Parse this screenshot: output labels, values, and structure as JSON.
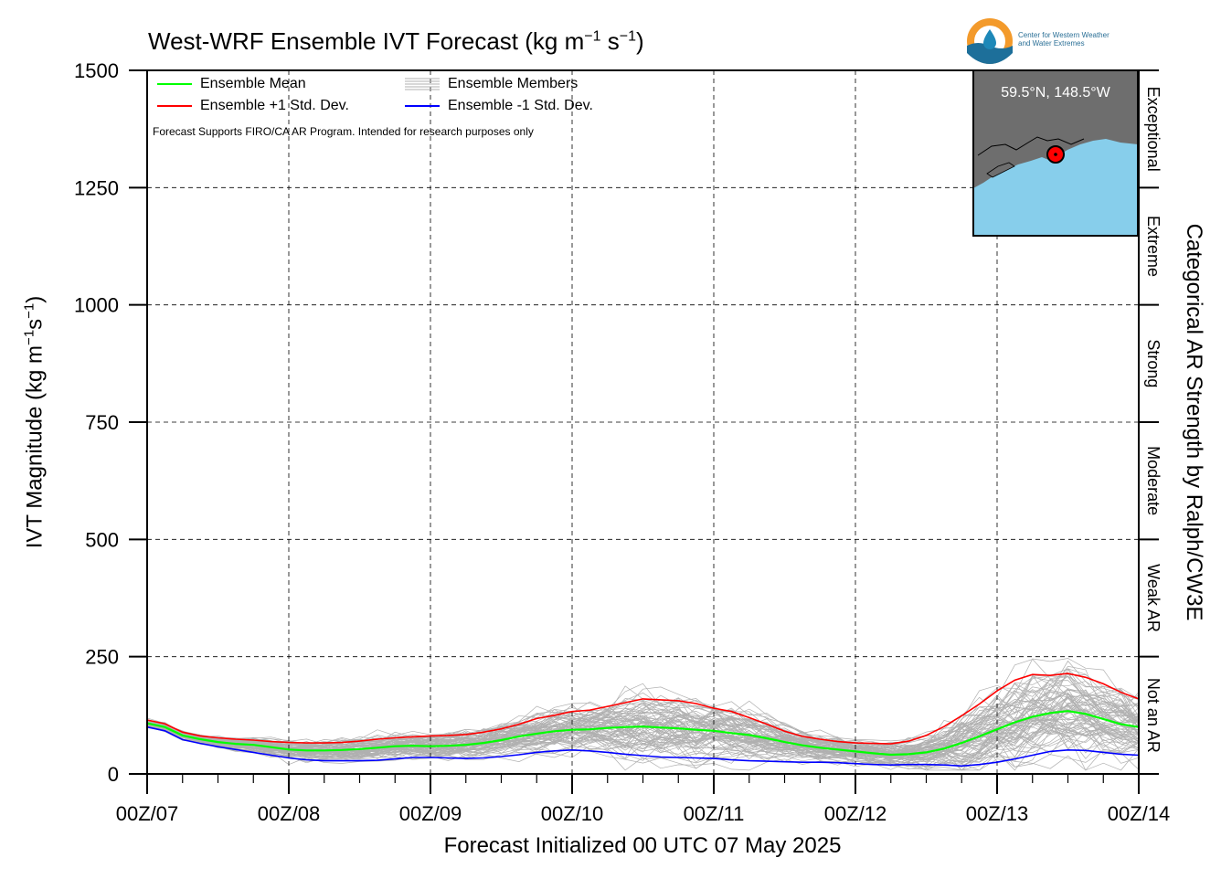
{
  "title": {
    "main": "West-WRF Ensemble IVT Forecast (kg m",
    "sup1": "−1",
    "mid": " s",
    "sup2": "−1",
    "end": ")"
  },
  "ylabel": {
    "a": "IVT Magnitude (kg m",
    "sup1": "−1",
    "b": "s",
    "sup2": "−1",
    "c": ")"
  },
  "xlabel": "Forecast Initialized 00 UTC 07 May 2025",
  "right_axis_label": "Categorical AR Strength by Ralph/CW3E",
  "note": "Forecast Supports FIRO/CA AR Program. Intended for research purposes only",
  "logo": {
    "line1": "Center for Western Weather",
    "line2": "and Water Extremes"
  },
  "inset": {
    "location": "59.5°N, 148.5°W",
    "ocean_color": "#87ceeb",
    "land_color": "#6e6e6e",
    "marker_color": "#ff0000"
  },
  "colors": {
    "mean": "#00ff00",
    "plus": "#ff0000",
    "minus": "#0000ff",
    "members": "#b0b0b0"
  },
  "chart_data": {
    "type": "line",
    "title": "West-WRF Ensemble IVT Forecast (kg m−1 s−1)",
    "xlabel": "Forecast Initialized 00 UTC 07 May 2025",
    "ylabel": "IVT Magnitude (kg m−1s−1)",
    "ylim": [
      0,
      1500
    ],
    "yticks": [
      0,
      250,
      500,
      750,
      1000,
      1250,
      1500
    ],
    "xlim": [
      0,
      168
    ],
    "x_unit": "hours after 00Z/07",
    "xtick_labels": [
      "00Z/07",
      "00Z/08",
      "00Z/09",
      "00Z/10",
      "00Z/11",
      "00Z/12",
      "00Z/13",
      "00Z/14"
    ],
    "grid": true,
    "legend_position": "top-left",
    "categories_right": [
      {
        "label": "Not an AR",
        "range": [
          0,
          250
        ]
      },
      {
        "label": "Weak AR",
        "range": [
          250,
          500
        ]
      },
      {
        "label": "Moderate",
        "range": [
          500,
          750
        ]
      },
      {
        "label": "Strong",
        "range": [
          750,
          1000
        ]
      },
      {
        "label": "Extreme",
        "range": [
          1000,
          1250
        ]
      },
      {
        "label": "Exceptional",
        "range": [
          1250,
          1500
        ]
      }
    ],
    "x": [
      0,
      3,
      6,
      9,
      12,
      15,
      18,
      21,
      24,
      27,
      30,
      33,
      36,
      39,
      42,
      45,
      48,
      51,
      54,
      57,
      60,
      63,
      66,
      69,
      72,
      75,
      78,
      81,
      84,
      87,
      90,
      93,
      96,
      99,
      102,
      105,
      108,
      111,
      114,
      117,
      120,
      123,
      126,
      129,
      132,
      135,
      138,
      141,
      144,
      147,
      150,
      153,
      156,
      159,
      162,
      165,
      168
    ],
    "series": [
      {
        "name": "Ensemble Mean",
        "color": "#00ff00",
        "values": [
          108,
          100,
          82,
          74,
          68,
          64,
          62,
          57,
          52,
          50,
          50,
          51,
          53,
          56,
          59,
          60,
          59,
          60,
          62,
          66,
          72,
          80,
          86,
          91,
          94,
          95,
          98,
          100,
          101,
          99,
          97,
          94,
          92,
          87,
          83,
          76,
          68,
          61,
          56,
          52,
          48,
          44,
          41,
          42,
          46,
          54,
          66,
          80,
          95,
          110,
          122,
          130,
          134,
          128,
          117,
          106,
          100
        ]
      },
      {
        "name": "Ensemble +1 Std. Dev.",
        "color": "#ff0000",
        "values": [
          115,
          107,
          89,
          81,
          77,
          74,
          72,
          69,
          67,
          66,
          66,
          67,
          70,
          74,
          77,
          79,
          81,
          82,
          84,
          89,
          96,
          106,
          118,
          125,
          133,
          136,
          144,
          152,
          160,
          158,
          156,
          150,
          140,
          133,
          120,
          106,
          91,
          80,
          74,
          69,
          66,
          65,
          64,
          70,
          82,
          101,
          124,
          149,
          177,
          200,
          212,
          210,
          214,
          206,
          192,
          174,
          160
        ]
      },
      {
        "name": "Ensemble -1 Std. Dev.",
        "color": "#0000ff",
        "values": [
          100,
          92,
          73,
          65,
          58,
          52,
          46,
          40,
          34,
          30,
          28,
          28,
          28,
          29,
          32,
          35,
          35,
          34,
          33,
          34,
          37,
          41,
          46,
          49,
          51,
          49,
          46,
          42,
          39,
          36,
          35,
          34,
          33,
          30,
          28,
          27,
          26,
          25,
          25,
          24,
          22,
          20,
          19,
          20,
          20,
          19,
          17,
          20,
          25,
          32,
          40,
          48,
          51,
          50,
          46,
          42,
          40
        ]
      }
    ],
    "members": {
      "name": "Ensemble Members",
      "count": 80,
      "color": "#b0b0b0"
    }
  }
}
